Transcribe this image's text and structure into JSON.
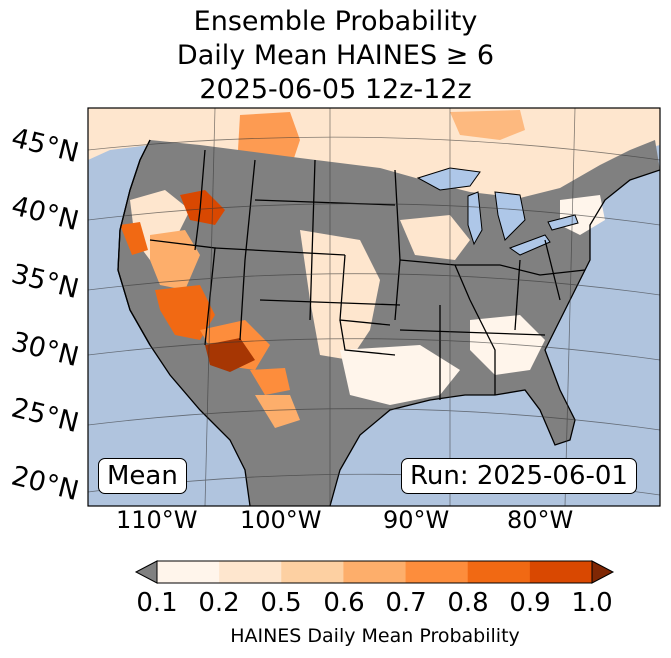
{
  "title": {
    "line1": "Ensemble Probability",
    "line2": "Daily Mean HAINES ≥ 6",
    "line3": "2025-06-05 12z-12z"
  },
  "latitude_labels": [
    "45°N",
    "40°N",
    "35°N",
    "30°N",
    "25°N",
    "20°N"
  ],
  "longitude_labels": [
    "110°W",
    "100°W",
    "90°W",
    "80°W"
  ],
  "left_box": "Mean",
  "right_box": "Run: 2025-06-01",
  "colorbar": {
    "ticks": [
      "0.1",
      "0.2",
      "0.5",
      "0.6",
      "0.7",
      "0.8",
      "0.9",
      "1.0"
    ],
    "label": "HAINES Daily Mean Probability",
    "under_color": "#808080",
    "colors": [
      "#fff5eb",
      "#fee6ce",
      "#fdd0a2",
      "#fdae6b",
      "#fd8d3c",
      "#f16913",
      "#d94801",
      "#a63603"
    ],
    "over_color": "#7f2704"
  },
  "map_colors": {
    "ocean": "#b0c4de",
    "land_low": "#808080",
    "water": "#aec7e8"
  }
}
